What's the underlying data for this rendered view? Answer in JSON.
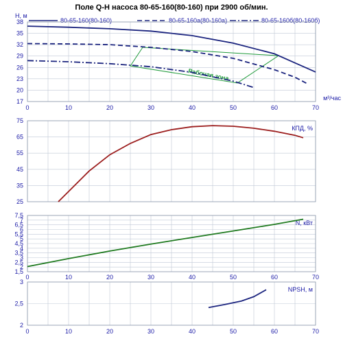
{
  "chart_data": {
    "title": "Поле Q-H насоса 80-65-160(80-160) при 2900 об/мин.",
    "x_axis": {
      "label": "м³/час",
      "ticks": [
        "0",
        "10",
        "20",
        "30",
        "40",
        "50",
        "60",
        "70"
      ],
      "range": [
        0,
        70
      ]
    },
    "zone_label": "Рабочая зона",
    "panels": [
      {
        "id": "head",
        "type": "line",
        "ylabel": "H, м",
        "ylim": [
          17,
          38
        ],
        "yticks": [
          "38",
          "35",
          "32",
          "29",
          "26",
          "23",
          "20",
          "17"
        ],
        "series": [
          {
            "name": "80-65-160(80-160)",
            "color": "#1a237e",
            "dash": "solid",
            "x": [
              0,
              10,
              20,
              30,
              40,
              50,
              60,
              65,
              70
            ],
            "y": [
              36.9,
              36.6,
              36.2,
              35.6,
              34.4,
              32.4,
              29.6,
              27.2,
              24.8
            ]
          },
          {
            "name": "80-65-160а(80-160а)",
            "color": "#1a237e",
            "dash": "dashed",
            "x": [
              0,
              10,
              20,
              30,
              40,
              50,
              60,
              65,
              68
            ],
            "y": [
              32.3,
              32.2,
              32.0,
              31.3,
              30.2,
              28.4,
              25.4,
              23.4,
              21.7
            ]
          },
          {
            "name": "80-65-160б(80-160б)",
            "color": "#1a237e",
            "dash": "dashdot",
            "x": [
              0,
              10,
              20,
              30,
              40,
              50,
              55
            ],
            "y": [
              27.8,
              27.5,
              27.0,
              26.2,
              24.7,
              22.4,
              20.7
            ]
          }
        ],
        "work_zone": [
          {
            "x": 28,
            "y": 31.3
          },
          {
            "x": 61,
            "y": 29.1
          },
          {
            "x": 51,
            "y": 21.9
          },
          {
            "x": 25,
            "y": 26.4
          }
        ]
      },
      {
        "id": "efficiency",
        "type": "line",
        "ylabel": "КПД, %",
        "ylim": [
          25,
          75
        ],
        "yticks": [
          "75",
          "65",
          "55",
          "45",
          "35",
          "25"
        ],
        "series": [
          {
            "name": "КПД, %",
            "color": "#9b1c1c",
            "x": [
              7.5,
              15,
              20,
              25,
              30,
              35,
              40,
              45,
              50,
              55,
              60,
              65,
              67
            ],
            "y": [
              25,
              44,
              54,
              61,
              66.5,
              69.5,
              71.3,
              72,
              71.6,
              70.4,
              68.5,
              66,
              64.5
            ]
          }
        ]
      },
      {
        "id": "power",
        "type": "line",
        "ylabel": "N, кВт",
        "ylim": [
          1.5,
          7.5
        ],
        "yticks": [
          "7,5",
          "7",
          "6,5",
          "6",
          "5,5",
          "5",
          "4,5",
          "4",
          "3,5",
          "3",
          "2,5",
          "2",
          "1,5"
        ],
        "series": [
          {
            "name": "N, кВт",
            "color": "#1f7a1f",
            "x": [
              0,
              10,
              20,
              30,
              40,
              50,
              60,
              67
            ],
            "y": [
              2.05,
              2.9,
              3.7,
              4.45,
              5.15,
              5.85,
              6.55,
              7.1
            ]
          }
        ]
      },
      {
        "id": "npsh",
        "type": "line",
        "ylabel": "NPSH, м",
        "ylim": [
          2,
          3
        ],
        "yticks": [
          "3",
          "2,5",
          "2"
        ],
        "series": [
          {
            "name": "NPSH, м",
            "color": "#1a237e",
            "x": [
              44,
              48,
              52,
              55,
              58
            ],
            "y": [
              2.41,
              2.48,
              2.56,
              2.66,
              2.82
            ]
          }
        ]
      }
    ]
  }
}
